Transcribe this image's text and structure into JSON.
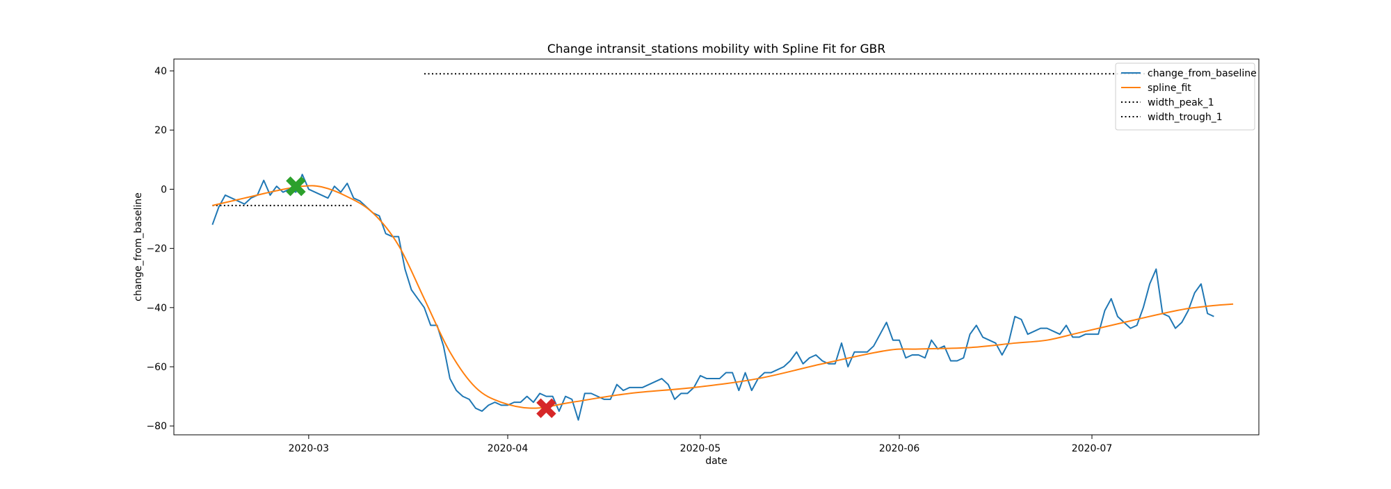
{
  "chart_data": {
    "type": "line",
    "title": "Change intransit_stations mobility with Spline Fit for GBR",
    "xlabel": "date",
    "ylabel": "change_from_baseline",
    "x_start": "2020-02-15",
    "xlim": [
      "2020-02-09",
      "2020-07-27"
    ],
    "ylim": [
      -83,
      44
    ],
    "x_ticks": [
      {
        "date": "2020-03-01",
        "label": "2020-03"
      },
      {
        "date": "2020-04-01",
        "label": "2020-04"
      },
      {
        "date": "2020-05-01",
        "label": "2020-05"
      },
      {
        "date": "2020-06-01",
        "label": "2020-06"
      },
      {
        "date": "2020-07-01",
        "label": "2020-07"
      }
    ],
    "y_ticks": [
      -80,
      -60,
      -40,
      -20,
      0,
      20,
      40
    ],
    "grid": false,
    "legend_position": "top-right",
    "series": [
      {
        "name": "change_from_baseline",
        "color": "#1f77b4",
        "style": "solid",
        "values": [
          -12,
          -6,
          -2,
          -3,
          -4,
          -5,
          -3,
          -2,
          3,
          -2,
          1,
          -1,
          0,
          -1,
          5,
          0,
          -1,
          -2,
          -3,
          1,
          -1,
          2,
          -3,
          -4,
          -6,
          -8,
          -9,
          -15,
          -16,
          -16,
          -27,
          -34,
          -37,
          -40,
          -46,
          -46,
          -53,
          -64,
          -68,
          -70,
          -71,
          -74,
          -75,
          -73,
          -72,
          -73,
          -73,
          -72,
          -72,
          -70,
          -72,
          -69,
          -70,
          -70,
          -75,
          -70,
          -71,
          -78,
          -69,
          -69,
          -70,
          -71,
          -71,
          -66,
          -68,
          -67,
          -67,
          -67,
          -66,
          -65,
          -64,
          -66,
          -71,
          -69,
          -69,
          -67,
          -63,
          -64,
          -64,
          -64,
          -62,
          -62,
          -68,
          -62,
          -68,
          -64,
          -62,
          -62,
          -61,
          -60,
          -58,
          -55,
          -59,
          -57,
          -56,
          -58,
          -59,
          -59,
          -52,
          -60,
          -55,
          -55,
          -55,
          -53,
          -49,
          -45,
          -51,
          -51,
          -57,
          -56,
          -56,
          -57,
          -51,
          -54,
          -53,
          -58,
          -58,
          -57,
          -49,
          -46,
          -50,
          -51,
          -52,
          -56,
          -52,
          -43,
          -44,
          -49,
          -48,
          -47,
          -47,
          -48,
          -49,
          -46,
          -50,
          -50,
          -49,
          -49,
          -49,
          -41,
          -37,
          -43,
          -45,
          -47,
          -46,
          -40,
          -32,
          -27,
          -42,
          -43,
          -47,
          -45,
          -41,
          -35,
          -32,
          -42,
          -43
        ]
      },
      {
        "name": "spline_fit",
        "color": "#ff7f0e",
        "style": "solid",
        "knots": [
          [
            0,
            -5.5
          ],
          [
            5,
            -3
          ],
          [
            10,
            -0.5
          ],
          [
            14,
            1
          ],
          [
            17,
            0.8
          ],
          [
            21,
            -2.5
          ],
          [
            25,
            -8
          ],
          [
            29,
            -19
          ],
          [
            33,
            -37
          ],
          [
            37,
            -55
          ],
          [
            41,
            -67
          ],
          [
            45,
            -72
          ],
          [
            50,
            -74
          ],
          [
            56,
            -72
          ],
          [
            65,
            -69
          ],
          [
            75,
            -67
          ],
          [
            85,
            -64
          ],
          [
            95,
            -59
          ],
          [
            105,
            -54.5
          ],
          [
            110,
            -54
          ],
          [
            118,
            -53.5
          ],
          [
            125,
            -52
          ],
          [
            130,
            -51
          ],
          [
            135,
            -48.5
          ],
          [
            142,
            -45
          ],
          [
            148,
            -42
          ],
          [
            152,
            -40.3
          ],
          [
            156,
            -39.3
          ],
          [
            159,
            -38.8
          ]
        ]
      },
      {
        "name": "width_peak_1",
        "color": "#000000",
        "style": "dotted",
        "start": "2020-02-15",
        "end": "2020-03-08",
        "y": -5.5
      },
      {
        "name": "width_trough_1",
        "color": "#000000",
        "style": "dotted",
        "start": "2020-03-19",
        "end": "2020-07-26",
        "y": 39
      }
    ],
    "markers": [
      {
        "kind": "peak",
        "date": "2020-02-28",
        "y": 1,
        "color": "#2ca02c",
        "symbol": "X"
      },
      {
        "kind": "trough",
        "date": "2020-04-07",
        "y": -74,
        "color": "#d62728",
        "symbol": "X"
      }
    ]
  }
}
